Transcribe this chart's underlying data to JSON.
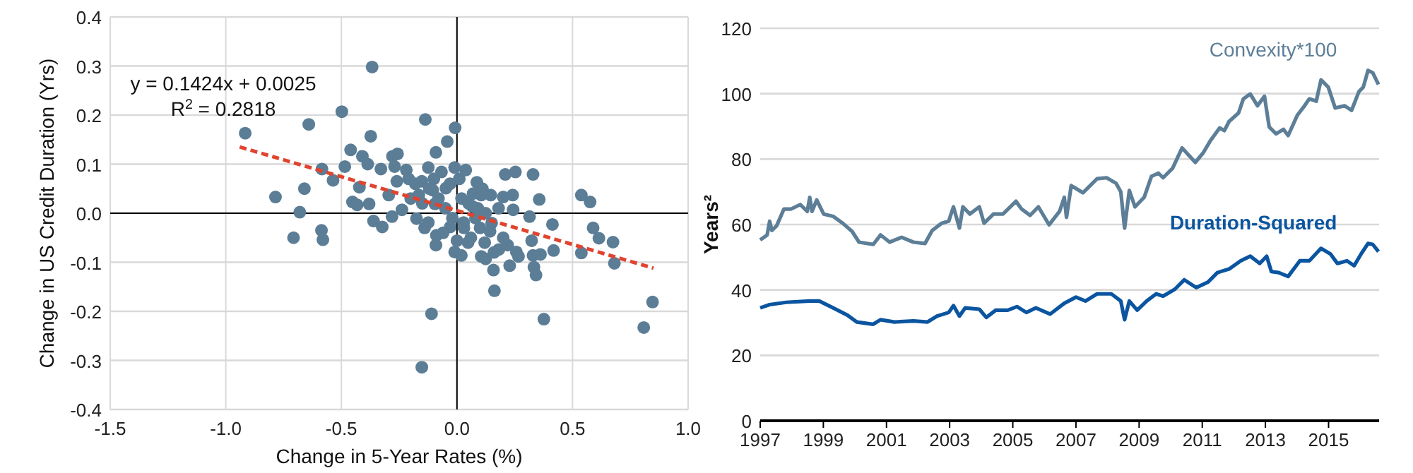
{
  "chart_data": [
    {
      "type": "scatter",
      "xlabel": "Change in 5-Year Rates (%)",
      "ylabel": "Change in US Credit Duration (Yrs)",
      "annotations": [
        "y = 0.1424x + 0.0025",
        "R$^{2}$ = 0.2818"
      ],
      "xlim": [
        -1.5,
        1.0
      ],
      "xticks": [
        -1.5,
        {
          "value": -1.0,
          "label": "-1.0"
        },
        -0.5,
        {
          "value": 0,
          "label": "0.0"
        },
        0.5,
        {
          "value": 1.0,
          "label": "1.0"
        }
      ],
      "ylim": [
        -0.4,
        0.4
      ],
      "yticks": [
        -0.4,
        -0.3,
        -0.2,
        -0.1,
        {
          "value": 0,
          "label": "0.0"
        },
        0.1,
        0.2,
        0.3,
        0.4
      ],
      "grid": true,
      "series": [
        {
          "color": "#5b7d96",
          "marker": "circle",
          "x": [
            -0.916,
            -0.367,
            -0.498,
            -0.641,
            -0.373,
            -0.137,
            -0.008,
            -0.042,
            -0.091,
            -0.46,
            -0.409,
            -0.386,
            -0.485,
            -0.584,
            -0.536,
            -0.66,
            -0.785,
            -0.68,
            -0.707,
            -0.586,
            -0.58,
            -0.452,
            -0.432,
            -0.422,
            -0.38,
            -0.361,
            -0.323,
            -0.329,
            -0.279,
            -0.257,
            -0.27,
            -0.219,
            -0.209,
            -0.26,
            -0.295,
            -0.281,
            -0.238,
            -0.175,
            -0.152,
            -0.124,
            -0.165,
            -0.105,
            -0.067,
            -0.01,
            0.038,
            0.01,
            0.086,
            -0.048,
            -0.095,
            -0.124,
            -0.089,
            -0.091,
            -0.11,
            -0.152,
            -0.029,
            0,
            -0.01,
            0.019,
            0.048,
            0.029,
            0.067,
            0.105,
            0.146,
            0.124,
            0.143,
            0.105,
            0.124,
            0.158,
            0.162,
            0.181,
            0.2,
            0.209,
            0.253,
            0.241,
            0.243,
            0.219,
            0.228,
            0.257,
            0.266,
            0.314,
            0.329,
            0.356,
            0.323,
            0.329,
            0.333,
            0.342,
            0.361,
            0.376,
            0.413,
            0.418,
            0.538,
            0.576,
            0.589,
            0.614,
            0.538,
            0.675,
            0.681,
            0.846,
            0.808,
            -0.2,
            -0.15,
            -0.12,
            -0.08,
            -0.05,
            -0.03,
            0.02,
            0.05,
            0.08,
            0.1,
            0.06,
            0.12,
            0.15,
            0.18,
            -0.06,
            -0.02,
            0.03,
            0.09,
            -0.18,
            -0.1,
            0.11,
            0.07,
            0.2,
            0.16,
            -0.14
          ],
          "values": [
            0.163,
            0.298,
            0.207,
            0.181,
            0.157,
            0.191,
            0.174,
            0.146,
            0.124,
            0.129,
            0.116,
            0.1,
            0.095,
            0.09,
            0.067,
            0.05,
            0.033,
            0.002,
            -0.05,
            -0.035,
            -0.054,
            0.023,
            0.017,
            0.053,
            0.019,
            -0.016,
            -0.028,
            0.09,
            0.116,
            0.121,
            0.095,
            0.088,
            0.07,
            0.065,
            0.037,
            -0.007,
            0.007,
            -0.011,
            0.065,
            0.093,
            0.037,
            0.047,
            0.084,
            0.093,
            0.088,
            0.07,
            0.063,
            0.051,
            0.019,
            -0.019,
            -0.045,
            -0.065,
            -0.205,
            -0.314,
            -0.028,
            -0.056,
            -0.079,
            -0.086,
            -0.06,
            -0.019,
            0.014,
            0.037,
            0.037,
            0,
            -0.037,
            -0.088,
            -0.093,
            -0.116,
            -0.158,
            -0.074,
            0.033,
            0.079,
            0.084,
            0.037,
            0.007,
            -0.065,
            -0.107,
            -0.079,
            -0.088,
            -0.007,
            0.079,
            0.028,
            -0.056,
            -0.086,
            -0.11,
            -0.126,
            -0.084,
            -0.216,
            -0.023,
            -0.076,
            0.037,
            0.023,
            -0.03,
            -0.051,
            -0.081,
            -0.059,
            -0.102,
            -0.181,
            -0.233,
            0.03,
            0.02,
            0.05,
            0.03,
            0.01,
            0.06,
            0.03,
            0.02,
            -0.01,
            -0.03,
            -0.05,
            -0.06,
            -0.02,
            0.01,
            -0.04,
            -0.01,
            -0.03,
            0.01,
            0.06,
            0.07,
            0.05,
            0.04,
            -0.05,
            -0.08,
            -0.03
          ]
        },
        {
          "type": "line",
          "color": "#e0442f",
          "line_style": "dashed",
          "x": [
            -0.94,
            0.85
          ],
          "values": [
            0.135,
            -0.112
          ]
        }
      ]
    },
    {
      "type": "line",
      "ylabel": "Years²",
      "xlim": [
        1997,
        2016.6
      ],
      "xticks": [
        1997,
        1999,
        2001,
        2003,
        2005,
        2007,
        2009,
        2011,
        2013,
        2015
      ],
      "ylim": [
        0,
        120
      ],
      "yticks": [
        0,
        20,
        40,
        60,
        80,
        100,
        120
      ],
      "grid": "y",
      "series": [
        {
          "name": "Convexity*100",
          "color": "#5d7e97",
          "x": [
            1997,
            1997.22,
            1997.3,
            1997.37,
            1997.52,
            1997.75,
            1997.97,
            1998.27,
            1998.49,
            1998.57,
            1998.64,
            1998.79,
            1999.01,
            1999.31,
            1999.61,
            1999.91,
            2000.13,
            2000.58,
            2000.81,
            2001.1,
            2001.48,
            2001.85,
            2002.22,
            2002.45,
            2002.75,
            2002.97,
            2003.12,
            2003.31,
            2003.42,
            2003.64,
            2003.94,
            2004.09,
            2004.39,
            2004.69,
            2005.1,
            2005.28,
            2005.55,
            2005.81,
            2006.15,
            2006.48,
            2006.63,
            2006.7,
            2006.85,
            2007.22,
            2007.67,
            2007.97,
            2008.27,
            2008.42,
            2008.54,
            2008.69,
            2008.87,
            2009.16,
            2009.39,
            2009.61,
            2009.76,
            2010.06,
            2010.36,
            2010.78,
            2011.03,
            2011.25,
            2011.55,
            2011.7,
            2011.85,
            2012.15,
            2012.3,
            2012.52,
            2012.75,
            2012.97,
            2013.12,
            2013.34,
            2013.57,
            2013.72,
            2014.01,
            2014.24,
            2014.39,
            2014.61,
            2014.76,
            2014.99,
            2015.21,
            2015.51,
            2015.73,
            2015.96,
            2016.1,
            2016.25,
            2016.4,
            2016.58
          ],
          "values": [
            55.3,
            56.8,
            61,
            58.2,
            59.6,
            64.7,
            64.7,
            66.1,
            64,
            68.3,
            64,
            67.5,
            63.2,
            62.5,
            60.4,
            57.9,
            54.6,
            53.9,
            56.8,
            54.6,
            56.1,
            54.6,
            54.2,
            58.2,
            60.4,
            61,
            65.4,
            58.9,
            65.4,
            63.2,
            65.4,
            60.4,
            63.2,
            63.2,
            67.1,
            64.7,
            62.8,
            65.4,
            59.9,
            64,
            68.3,
            62.2,
            71.9,
            69.7,
            74,
            74.3,
            72.6,
            70,
            58.9,
            70.4,
            65.4,
            68.3,
            74.7,
            75.7,
            74.3,
            77.2,
            83.4,
            79,
            81.9,
            85.5,
            89.5,
            88.7,
            91.5,
            94.1,
            98.4,
            99.9,
            96.3,
            99.2,
            89.8,
            87.7,
            89.1,
            87.2,
            93.4,
            96.3,
            98.4,
            97.7,
            104.2,
            102,
            95.6,
            96.3,
            94.9,
            100.6,
            102,
            107.1,
            106.4,
            102.8
          ]
        },
        {
          "name": "Duration-Squared",
          "color": "#0b55a0",
          "x": [
            1997,
            1997.3,
            1997.82,
            1998.57,
            1998.87,
            1999.31,
            1999.76,
            2000.06,
            2000.58,
            2000.81,
            2001.25,
            2001.85,
            2002.3,
            2002.6,
            2002.97,
            2003.12,
            2003.31,
            2003.49,
            2003.94,
            2004.16,
            2004.46,
            2004.84,
            2005.13,
            2005.43,
            2005.73,
            2006.18,
            2006.63,
            2007,
            2007.3,
            2007.67,
            2008.12,
            2008.42,
            2008.54,
            2008.69,
            2008.94,
            2009.24,
            2009.54,
            2009.76,
            2010.13,
            2010.43,
            2010.81,
            2011.18,
            2011.48,
            2011.85,
            2012.22,
            2012.52,
            2012.82,
            2013.04,
            2013.19,
            2013.42,
            2013.72,
            2014.09,
            2014.39,
            2014.76,
            2015.06,
            2015.28,
            2015.58,
            2015.81,
            2016.03,
            2016.25,
            2016.4,
            2016.58
          ],
          "values": [
            34.5,
            35.5,
            36.2,
            36.6,
            36.6,
            34.5,
            32.3,
            30.2,
            29.5,
            30.9,
            30.2,
            30.5,
            30.2,
            32,
            33.1,
            35.2,
            32,
            34.5,
            34.1,
            31.6,
            33.8,
            33.8,
            34.9,
            33.1,
            34.5,
            32.6,
            35.9,
            37.8,
            36.6,
            38.8,
            38.8,
            36.6,
            30.9,
            36.6,
            33.8,
            36.6,
            38.8,
            38.1,
            40.2,
            43.1,
            40.7,
            42.4,
            45.3,
            46.4,
            48.9,
            50.3,
            48.1,
            50.3,
            45.6,
            45.3,
            44.1,
            48.9,
            48.9,
            52.7,
            51,
            48.1,
            48.9,
            47.4,
            51,
            54.2,
            53.9,
            51.7
          ]
        }
      ]
    }
  ]
}
